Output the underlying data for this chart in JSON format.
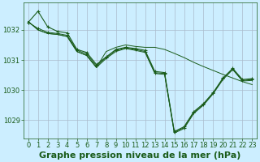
{
  "title": "Graphe pression niveau de la mer (hPa)",
  "bg_color": "#cceeff",
  "grid_color": "#aabbcc",
  "line_color": "#1a5c1a",
  "ylim": [
    1028.4,
    1032.9
  ],
  "yticks": [
    1029,
    1030,
    1031,
    1032
  ],
  "xlim": [
    -0.5,
    23.5
  ],
  "xticks": [
    0,
    1,
    2,
    3,
    4,
    5,
    6,
    7,
    8,
    9,
    10,
    11,
    12,
    13,
    14,
    15,
    16,
    17,
    18,
    19,
    20,
    21,
    22,
    23
  ],
  "series": [
    [
      1032.25,
      1032.62,
      1032.1,
      1031.95,
      1031.9,
      1031.35,
      1031.25,
      1030.85,
      1031.1,
      1031.35,
      1031.42,
      1031.38,
      1031.32,
      1030.62,
      1030.58,
      1028.62,
      1028.78,
      1029.28,
      1029.55,
      1029.92,
      1030.4,
      1030.72,
      1030.35,
      1030.38
    ],
    [
      1032.25,
      1032.05,
      1031.92,
      1031.88,
      1031.82,
      1031.32,
      1031.2,
      1030.8,
      1031.08,
      1031.32,
      1031.4,
      1031.35,
      1031.28,
      1030.58,
      1030.55,
      1028.6,
      1028.75,
      1029.25,
      1029.52,
      1029.9,
      1030.38,
      1030.7,
      1030.32,
      1030.35
    ],
    [
      1032.28,
      1032.0,
      1031.88,
      1031.85,
      1031.78,
      1031.28,
      1031.15,
      1030.75,
      1031.05,
      1031.28,
      1031.38,
      1031.32,
      1031.25,
      1030.55,
      1030.52,
      1028.57,
      1028.72,
      1029.22,
      1029.5,
      1029.88,
      1030.35,
      1030.68,
      1030.3,
      1030.32
    ],
    [
      1032.28,
      1032.0,
      1031.88,
      1031.85,
      1031.78,
      1031.28,
      1031.15,
      1030.75,
      1031.28,
      1031.42,
      1031.5,
      1031.45,
      1031.42,
      1031.42,
      1031.35,
      1031.22,
      1031.08,
      1030.92,
      1030.78,
      1030.65,
      1030.52,
      1030.4,
      1030.28,
      1030.18
    ]
  ],
  "has_markers": [
    true,
    true,
    false,
    false
  ],
  "title_fontsize": 8,
  "tick_fontsize": 6
}
